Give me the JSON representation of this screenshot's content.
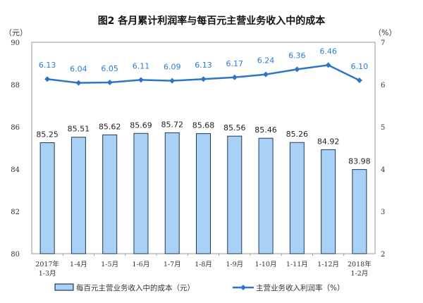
{
  "chart_data": {
    "type": "bar",
    "title": "图2  各月累计利润率与每百元主营业务收入中的成本",
    "left_unit": "（元）",
    "right_unit": "（%）",
    "categories": [
      [
        "2017年",
        "1-3月"
      ],
      [
        "1-4月"
      ],
      [
        "1-5月"
      ],
      [
        "1-6月"
      ],
      [
        "1-7月"
      ],
      [
        "1-8月"
      ],
      [
        "1-9月"
      ],
      [
        "1-10月"
      ],
      [
        "1-11月"
      ],
      [
        "1-12月"
      ],
      [
        "2018年",
        "1-2月"
      ]
    ],
    "left_axis": {
      "ylim": [
        80,
        90
      ],
      "ticks": [
        80,
        82,
        84,
        86,
        88,
        90
      ]
    },
    "right_axis": {
      "ylim": [
        2,
        7
      ],
      "ticks": [
        2,
        3,
        4,
        5,
        6,
        7
      ]
    },
    "series": [
      {
        "name": "每百元主营业务收入中的成本（元）",
        "type": "bar",
        "axis": "left",
        "color": "#a9d0f5",
        "stroke": "#1f3a5c",
        "values": [
          85.25,
          85.51,
          85.62,
          85.69,
          85.72,
          85.68,
          85.56,
          85.46,
          85.26,
          84.92,
          83.98
        ]
      },
      {
        "name": "主营业务收入利润率（%）",
        "type": "line",
        "axis": "right",
        "color": "#2e75c8",
        "values": [
          6.13,
          6.04,
          6.05,
          6.11,
          6.09,
          6.13,
          6.17,
          6.24,
          6.36,
          6.46,
          6.1
        ],
        "labels": [
          "6.13",
          "6.04",
          "6.05",
          "6.11",
          "6.09",
          "6.13",
          "6.17",
          "6.24",
          "6.36",
          "6.46",
          "6.10"
        ]
      }
    ],
    "bar_labels": [
      "85.25",
      "85.51",
      "85.62",
      "85.69",
      "85.72",
      "85.68",
      "85.56",
      "85.46",
      "85.26",
      "84.92",
      "83.98"
    ],
    "legend_position": "bottom",
    "grid": false
  }
}
